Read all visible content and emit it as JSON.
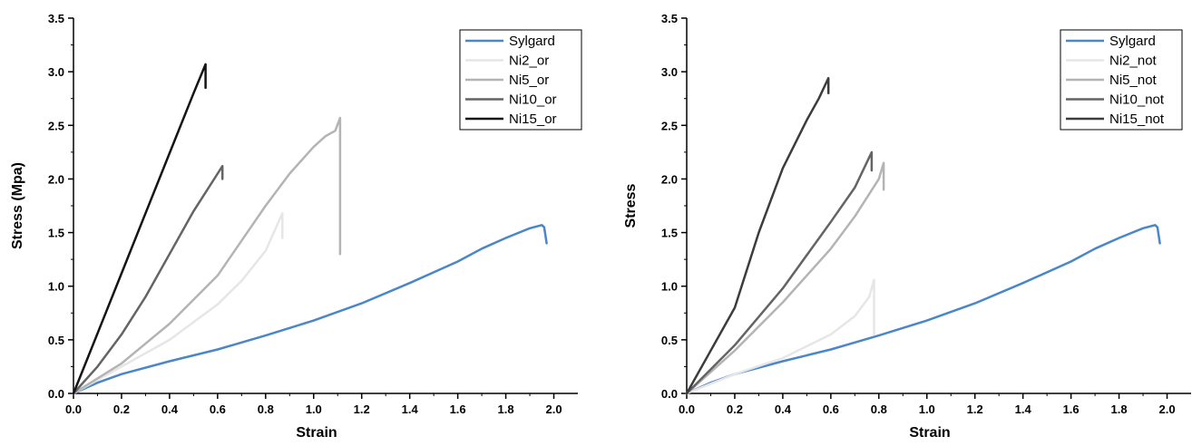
{
  "chart_data": [
    {
      "type": "line",
      "title": "",
      "xlabel": "Strain",
      "ylabel": "Stress (Mpa)",
      "xlim": [
        0,
        2.1
      ],
      "ylim": [
        0,
        3.5
      ],
      "xticks": [
        "0.0",
        "0.2",
        "0.4",
        "0.6",
        "0.8",
        "1.0",
        "1.2",
        "1.4",
        "1.6",
        "1.8",
        "2.0"
      ],
      "yticks": [
        "0.0",
        "0.5",
        "1.0",
        "1.5",
        "2.0",
        "2.5",
        "3.0",
        "3.5"
      ],
      "grid": false,
      "legend_position": "top-right",
      "series": [
        {
          "name": "Sylgard",
          "color": "#4a86c8",
          "points": [
            [
              0,
              0
            ],
            [
              0.1,
              0.1
            ],
            [
              0.2,
              0.18
            ],
            [
              0.4,
              0.3
            ],
            [
              0.6,
              0.41
            ],
            [
              0.8,
              0.54
            ],
            [
              1.0,
              0.68
            ],
            [
              1.2,
              0.84
            ],
            [
              1.4,
              1.03
            ],
            [
              1.6,
              1.23
            ],
            [
              1.7,
              1.35
            ],
            [
              1.8,
              1.45
            ],
            [
              1.9,
              1.54
            ],
            [
              1.95,
              1.57
            ],
            [
              1.96,
              1.55
            ],
            [
              1.97,
              1.4
            ]
          ]
        },
        {
          "name": "Ni2_or",
          "color": "#e6e6e6",
          "points": [
            [
              0,
              0
            ],
            [
              0.2,
              0.25
            ],
            [
              0.4,
              0.5
            ],
            [
              0.6,
              0.83
            ],
            [
              0.7,
              1.05
            ],
            [
              0.8,
              1.33
            ],
            [
              0.87,
              1.68
            ],
            [
              0.87,
              1.45
            ]
          ]
        },
        {
          "name": "Ni5_or",
          "color": "#b4b4b4",
          "points": [
            [
              0,
              0
            ],
            [
              0.2,
              0.28
            ],
            [
              0.4,
              0.65
            ],
            [
              0.6,
              1.1
            ],
            [
              0.8,
              1.75
            ],
            [
              0.9,
              2.05
            ],
            [
              1.0,
              2.3
            ],
            [
              1.05,
              2.4
            ],
            [
              1.09,
              2.45
            ],
            [
              1.11,
              2.57
            ],
            [
              1.11,
              1.3
            ]
          ]
        },
        {
          "name": "Ni10_or",
          "color": "#646464",
          "points": [
            [
              0,
              0
            ],
            [
              0.1,
              0.25
            ],
            [
              0.2,
              0.55
            ],
            [
              0.3,
              0.9
            ],
            [
              0.4,
              1.3
            ],
            [
              0.5,
              1.7
            ],
            [
              0.6,
              2.05
            ],
            [
              0.62,
              2.12
            ],
            [
              0.62,
              2.0
            ]
          ]
        },
        {
          "name": "Ni15_or",
          "color": "#141414",
          "points": [
            [
              0,
              0
            ],
            [
              0.1,
              0.56
            ],
            [
              0.2,
              1.12
            ],
            [
              0.3,
              1.68
            ],
            [
              0.4,
              2.24
            ],
            [
              0.5,
              2.8
            ],
            [
              0.55,
              3.07
            ],
            [
              0.55,
              2.85
            ]
          ]
        }
      ]
    },
    {
      "type": "line",
      "title": "",
      "xlabel": "Strain",
      "ylabel": "Stress",
      "xlim": [
        0,
        2.1
      ],
      "ylim": [
        0,
        3.5
      ],
      "xticks": [
        "0.0",
        "0.2",
        "0.4",
        "0.6",
        "0.8",
        "1.0",
        "1.2",
        "1.4",
        "1.6",
        "1.8",
        "2.0"
      ],
      "yticks": [
        "0.0",
        "0.5",
        "1.0",
        "1.5",
        "2.0",
        "2.5",
        "3.0",
        "3.5"
      ],
      "grid": false,
      "legend_position": "top-right",
      "series": [
        {
          "name": "Sylgard",
          "color": "#4a86c8",
          "points": [
            [
              0,
              0
            ],
            [
              0.1,
              0.1
            ],
            [
              0.2,
              0.18
            ],
            [
              0.4,
              0.3
            ],
            [
              0.6,
              0.41
            ],
            [
              0.8,
              0.54
            ],
            [
              1.0,
              0.68
            ],
            [
              1.2,
              0.84
            ],
            [
              1.4,
              1.03
            ],
            [
              1.6,
              1.23
            ],
            [
              1.7,
              1.35
            ],
            [
              1.8,
              1.45
            ],
            [
              1.9,
              1.54
            ],
            [
              1.95,
              1.57
            ],
            [
              1.96,
              1.55
            ],
            [
              1.97,
              1.4
            ]
          ]
        },
        {
          "name": "Ni2_not",
          "color": "#e6e6e6",
          "points": [
            [
              0,
              0
            ],
            [
              0.2,
              0.18
            ],
            [
              0.4,
              0.33
            ],
            [
              0.6,
              0.55
            ],
            [
              0.7,
              0.72
            ],
            [
              0.76,
              0.9
            ],
            [
              0.78,
              1.06
            ],
            [
              0.78,
              0.55
            ]
          ]
        },
        {
          "name": "Ni5_not",
          "color": "#b4b4b4",
          "points": [
            [
              0,
              0
            ],
            [
              0.2,
              0.4
            ],
            [
              0.4,
              0.85
            ],
            [
              0.6,
              1.35
            ],
            [
              0.7,
              1.65
            ],
            [
              0.8,
              2.0
            ],
            [
              0.82,
              2.15
            ],
            [
              0.82,
              1.9
            ]
          ]
        },
        {
          "name": "Ni10_not",
          "color": "#646464",
          "points": [
            [
              0,
              0
            ],
            [
              0.2,
              0.45
            ],
            [
              0.4,
              0.98
            ],
            [
              0.6,
              1.6
            ],
            [
              0.7,
              1.92
            ],
            [
              0.77,
              2.25
            ],
            [
              0.77,
              2.08
            ]
          ]
        },
        {
          "name": "Ni15_not",
          "color": "#3c3c3c",
          "points": [
            [
              0,
              0
            ],
            [
              0.1,
              0.4
            ],
            [
              0.2,
              0.8
            ],
            [
              0.3,
              1.5
            ],
            [
              0.4,
              2.1
            ],
            [
              0.5,
              2.55
            ],
            [
              0.55,
              2.75
            ],
            [
              0.59,
              2.94
            ],
            [
              0.59,
              2.8
            ]
          ]
        }
      ]
    }
  ]
}
